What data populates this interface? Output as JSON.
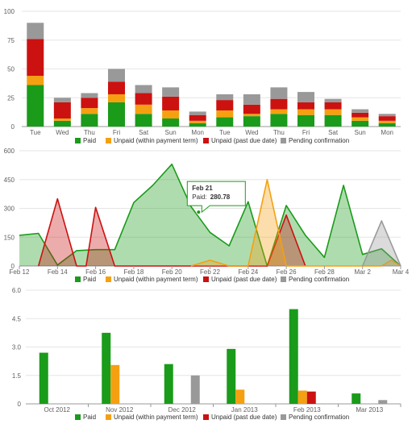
{
  "colors": {
    "paid": "#1a9b1a",
    "unpaid_term": "#f5a011",
    "unpaid_due": "#cc1111",
    "pending": "#999999"
  },
  "chart_data": [
    {
      "type": "bar",
      "stacked": true,
      "categories": [
        "Tue",
        "Wed",
        "Thu",
        "Fri",
        "Sat",
        "Sun",
        "Mon",
        "Tue",
        "Wed",
        "Thu",
        "Fri",
        "Sat",
        "Sun",
        "Mon"
      ],
      "ylim": [
        0,
        100
      ],
      "yticks": [
        "0",
        "25",
        "50",
        "75",
        "100"
      ],
      "legend_position": "bottom",
      "series": [
        {
          "name": "Paid",
          "color_key": "paid",
          "values": [
            36,
            5,
            11,
            21,
            11,
            7,
            3,
            8,
            9,
            11,
            10,
            10,
            5,
            3
          ]
        },
        {
          "name": "Unpaid (within payment term)",
          "color_key": "unpaid_term",
          "values": [
            8,
            2,
            5,
            7,
            8,
            7,
            2,
            6,
            2,
            4,
            5,
            5,
            3,
            2
          ]
        },
        {
          "name": "Unpaid (past due date)",
          "color_key": "unpaid_due",
          "values": [
            32,
            14,
            9,
            11,
            10,
            12,
            5,
            9,
            8,
            9,
            6,
            6,
            4,
            4
          ]
        },
        {
          "name": "Pending confirmation",
          "color_key": "pending",
          "values": [
            14,
            4,
            4,
            11,
            7,
            8,
            3,
            5,
            9,
            10,
            9,
            3,
            3,
            2
          ]
        }
      ]
    },
    {
      "type": "area",
      "x_labels": [
        "Feb 12",
        "Feb 14",
        "Feb 16",
        "Feb 18",
        "Feb 20",
        "Feb 22",
        "Feb 24",
        "Feb 26",
        "Feb 28",
        "Mar 2",
        "Mar 4"
      ],
      "xlim": [
        0,
        20
      ],
      "ylim": [
        0,
        600
      ],
      "yticks": [
        "0",
        "150",
        "300",
        "450",
        "600"
      ],
      "legend_position": "bottom",
      "tooltip": {
        "date": "Feb 21",
        "label": "Paid: ",
        "value": "280.78",
        "x": 9.4,
        "y": 280.78
      },
      "series": [
        {
          "name": "Paid",
          "color_key": "paid",
          "points": [
            [
              0,
              160
            ],
            [
              1,
              170
            ],
            [
              2,
              5
            ],
            [
              3,
              80
            ],
            [
              4,
              85
            ],
            [
              5,
              85
            ],
            [
              6,
              330
            ],
            [
              7,
              420
            ],
            [
              8,
              530
            ],
            [
              9,
              310
            ],
            [
              10,
              175
            ],
            [
              11,
              105
            ],
            [
              12,
              335
            ],
            [
              13,
              0
            ],
            [
              14,
              315
            ],
            [
              15,
              160
            ],
            [
              16,
              45
            ],
            [
              17,
              420
            ],
            [
              18,
              60
            ],
            [
              19,
              90
            ],
            [
              20,
              0
            ]
          ]
        },
        {
          "name": "Unpaid (within payment term)",
          "color_key": "unpaid_term",
          "points": [
            [
              9,
              0
            ],
            [
              10,
              30
            ],
            [
              11,
              0
            ],
            [
              12,
              0
            ],
            [
              13,
              450
            ],
            [
              14,
              0
            ],
            [
              19,
              0
            ],
            [
              19.5,
              30
            ],
            [
              20,
              0
            ]
          ]
        },
        {
          "name": "Unpaid (past due date)",
          "color_key": "unpaid_due",
          "points": [
            [
              1,
              0
            ],
            [
              2,
              350
            ],
            [
              3,
              0
            ],
            [
              3.5,
              0
            ],
            [
              4,
              305
            ],
            [
              5,
              0
            ],
            [
              13,
              0
            ],
            [
              14,
              265
            ],
            [
              15,
              0
            ]
          ]
        },
        {
          "name": "Pending confirmation",
          "color_key": "pending",
          "points": [
            [
              18,
              0
            ],
            [
              19,
              235
            ],
            [
              20,
              0
            ]
          ]
        }
      ]
    },
    {
      "type": "bar",
      "stacked": false,
      "categories": [
        "Oct 2012",
        "Nov 2012",
        "Dec 2012",
        "Jan 2013",
        "Feb 2013",
        "Mar 2013"
      ],
      "ylim": [
        0,
        6
      ],
      "yticks": [
        "0",
        "1.5",
        "3.0",
        "4.5",
        "6.0"
      ],
      "legend_position": "bottom",
      "series": [
        {
          "name": "Paid",
          "color_key": "paid",
          "values": [
            2.7,
            3.75,
            2.1,
            2.9,
            5.0,
            0.55
          ]
        },
        {
          "name": "Unpaid (within payment term)",
          "color_key": "unpaid_term",
          "values": [
            0,
            2.05,
            0,
            0.75,
            0.7,
            0
          ]
        },
        {
          "name": "Unpaid (past due date)",
          "color_key": "unpaid_due",
          "values": [
            0,
            0,
            0,
            0,
            0.65,
            0
          ]
        },
        {
          "name": "Pending confirmation",
          "color_key": "pending",
          "values": [
            0,
            0,
            1.5,
            0,
            0,
            0.2
          ]
        }
      ]
    }
  ]
}
